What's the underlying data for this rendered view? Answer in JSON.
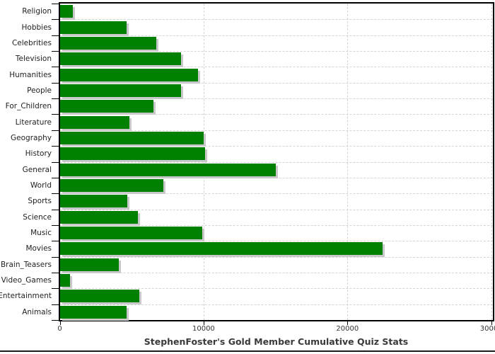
{
  "title": "StephenFoster's Gold Member Cumulative Quiz Stats",
  "chart_data": {
    "type": "bar",
    "orientation": "horizontal",
    "title": "StephenFoster's Gold Member Cumulative Quiz Stats",
    "categories": [
      "Religion",
      "Hobbies",
      "Celebrities",
      "Television",
      "Humanities",
      "People",
      "For_Children",
      "Literature",
      "Geography",
      "History",
      "General",
      "World",
      "Sports",
      "Science",
      "Music",
      "Movies",
      "Brain_Teasers",
      "Video_Games",
      "Entertainment",
      "Animals"
    ],
    "values": [
      900,
      4600,
      6700,
      8400,
      9600,
      8400,
      6500,
      4800,
      10000,
      10100,
      15000,
      7200,
      4650,
      5400,
      9900,
      22400,
      4100,
      700,
      5500,
      4600
    ],
    "xlabel": "",
    "ylabel": "",
    "xlim": [
      0,
      30200
    ],
    "x_ticks": [
      "0",
      "10000",
      "20000",
      "30000"
    ],
    "x_tick_values": [
      0,
      10000,
      20000,
      30000
    ],
    "grid": "dashed",
    "legend": "none",
    "colors": {
      "bar": "#008000",
      "bar_shadow": "#c9c9c9",
      "gridline": "#d4d4d4",
      "axis": "#000000",
      "tick_text": "#333333",
      "label_text": "#222222",
      "title_text": "#3a3a3a",
      "background": "#ffffff"
    }
  }
}
